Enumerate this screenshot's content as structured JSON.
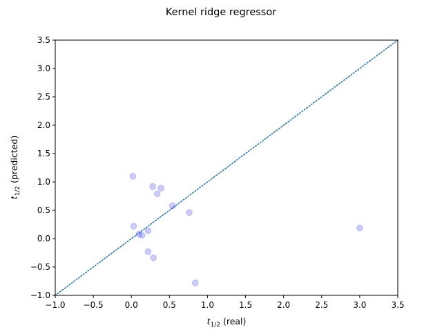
{
  "chart_data": {
    "type": "scatter",
    "title": "Kernel ridge regressor",
    "xlabel": {
      "var": "t",
      "sub": "1/2",
      "suffix": " (real)"
    },
    "ylabel": {
      "var": "t",
      "sub": "1/2",
      "suffix": " (predicted)"
    },
    "xlim": [
      -1.0,
      3.5
    ],
    "ylim": [
      -1.0,
      3.5
    ],
    "xticks": [
      "−1.0",
      "−0.5",
      "0.0",
      "0.5",
      "1.0",
      "1.5",
      "2.0",
      "2.5",
      "3.0",
      "3.5"
    ],
    "yticks": [
      "−1.0",
      "−0.5",
      "0.0",
      "0.5",
      "1.0",
      "1.5",
      "2.0",
      "2.5",
      "3.0",
      "3.5"
    ],
    "grid": false,
    "reference_line": {
      "x": [
        -1.0,
        3.5
      ],
      "y": [
        -1.0,
        3.5
      ],
      "style": "dotted",
      "color": "#1f77b4"
    },
    "point_color": "#0000ff",
    "points": [
      {
        "x": 0.02,
        "y": 1.1
      },
      {
        "x": 0.03,
        "y": 0.22
      },
      {
        "x": 0.1,
        "y": 0.08
      },
      {
        "x": 0.14,
        "y": 0.06
      },
      {
        "x": 0.22,
        "y": 0.14
      },
      {
        "x": 0.22,
        "y": -0.23
      },
      {
        "x": 0.28,
        "y": 0.92
      },
      {
        "x": 0.29,
        "y": -0.34
      },
      {
        "x": 0.34,
        "y": 0.79
      },
      {
        "x": 0.39,
        "y": 0.89
      },
      {
        "x": 0.54,
        "y": 0.58
      },
      {
        "x": 0.76,
        "y": 0.46
      },
      {
        "x": 0.84,
        "y": -0.78
      },
      {
        "x": 3.0,
        "y": 0.19
      }
    ]
  }
}
